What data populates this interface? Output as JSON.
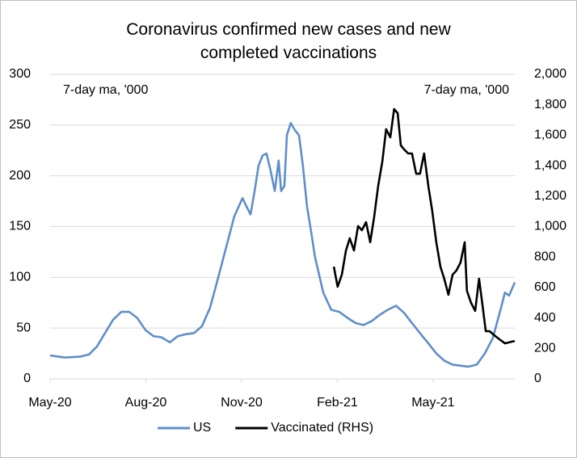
{
  "chart_data": {
    "type": "line",
    "title": "Coronavirus confirmed new cases and new completed vaccinations",
    "annotations": [
      "7-day ma, '000",
      "7-day ma, '000"
    ],
    "xlim": [
      0,
      14.56
    ],
    "xticks": [
      {
        "value": 0,
        "label": "May-20"
      },
      {
        "value": 3,
        "label": "Aug-20"
      },
      {
        "value": 6,
        "label": "Nov-20"
      },
      {
        "value": 9,
        "label": "Feb-21"
      },
      {
        "value": 12,
        "label": "May-21"
      }
    ],
    "ylim": [
      0,
      300
    ],
    "yticks": [
      0,
      50,
      100,
      150,
      200,
      250,
      300
    ],
    "y2lim": [
      0,
      2000
    ],
    "y2ticks": [
      0,
      200,
      400,
      600,
      800,
      {
        "value": 1000,
        "label": "1,000"
      },
      {
        "value": 1200,
        "label": "1,200"
      },
      {
        "value": 1400,
        "label": "1,400"
      },
      {
        "value": 1600,
        "label": "1,600"
      },
      {
        "value": 1800,
        "label": "1,800"
      },
      {
        "value": 2000,
        "label": "2,000"
      }
    ],
    "grid": true,
    "legend": "bottom",
    "series": [
      {
        "name": "US",
        "color": "#5f8fc9",
        "axis": "y",
        "x": [
          0,
          0.46,
          0.96,
          1.22,
          1.47,
          1.72,
          1.97,
          2.23,
          2.48,
          2.73,
          2.99,
          3.24,
          3.49,
          3.75,
          4.0,
          4.25,
          4.51,
          4.76,
          5.01,
          5.27,
          5.52,
          5.77,
          6.03,
          6.15,
          6.28,
          6.41,
          6.53,
          6.66,
          6.78,
          6.91,
          7.04,
          7.16,
          7.24,
          7.34,
          7.42,
          7.54,
          7.67,
          7.8,
          7.92,
          8.05,
          8.18,
          8.3,
          8.56,
          8.81,
          9.06,
          9.32,
          9.57,
          9.82,
          10.08,
          10.33,
          10.58,
          10.84,
          11.09,
          11.34,
          11.59,
          11.85,
          12.1,
          12.35,
          12.61,
          12.86,
          13.11,
          13.37,
          13.62,
          13.87,
          14.0,
          14.13,
          14.25,
          14.38,
          14.56
        ],
        "values": [
          23,
          21,
          22,
          24,
          32,
          45,
          58,
          66,
          66,
          60,
          48,
          42,
          41,
          36,
          42,
          44,
          45,
          52,
          70,
          100,
          130,
          160,
          178,
          170,
          162,
          185,
          210,
          220,
          222,
          205,
          185,
          215,
          185,
          190,
          240,
          252,
          245,
          240,
          210,
          170,
          145,
          120,
          85,
          68,
          66,
          60,
          55,
          53,
          57,
          63,
          68,
          72,
          65,
          55,
          45,
          35,
          25,
          18,
          14,
          13,
          12,
          14,
          25,
          40,
          55,
          70,
          85,
          82,
          95
        ]
      },
      {
        "name": "Vaccinated (RHS)",
        "color": "#000000",
        "axis": "y2",
        "x": [
          8.89,
          9.01,
          9.14,
          9.27,
          9.39,
          9.52,
          9.65,
          9.77,
          9.9,
          10.03,
          10.15,
          10.28,
          10.41,
          10.53,
          10.66,
          10.78,
          10.89,
          10.99,
          11.09,
          11.22,
          11.34,
          11.47,
          11.59,
          11.72,
          11.85,
          11.97,
          12.1,
          12.23,
          12.35,
          12.48,
          12.61,
          12.73,
          12.86,
          12.99,
          13.06,
          13.19,
          13.32,
          13.44,
          13.54,
          13.65,
          13.77,
          13.92,
          14.08,
          14.25,
          14.56
        ],
        "values": [
          737,
          605,
          684,
          843,
          923,
          843,
          1003,
          976,
          1029,
          897,
          1056,
          1268,
          1427,
          1640,
          1586,
          1772,
          1745,
          1533,
          1507,
          1480,
          1480,
          1347,
          1347,
          1480,
          1268,
          1109,
          897,
          737,
          658,
          552,
          684,
          711,
          764,
          897,
          578,
          499,
          446,
          658,
          499,
          313,
          313,
          286,
          260,
          233,
          249
        ]
      }
    ]
  }
}
